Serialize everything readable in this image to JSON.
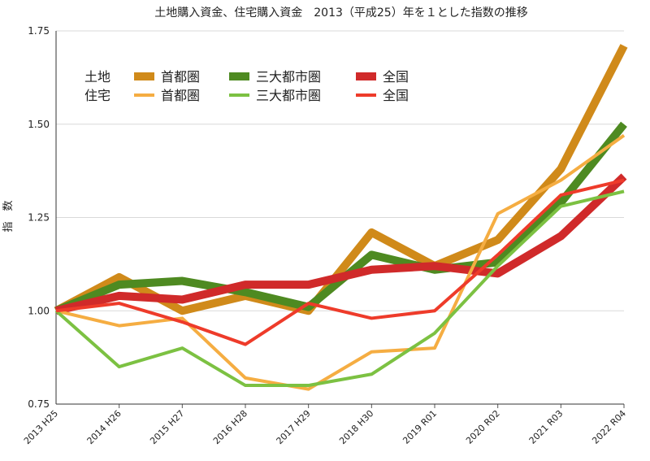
{
  "chart_data": {
    "type": "line",
    "title": "土地購入資金、住宅購入資金　2013（平成25）年を１とした指数の推移",
    "xlabel": "",
    "ylabel": "指　数",
    "categories": [
      "2013 H25",
      "2014 H26",
      "2015 H27",
      "2016 H28",
      "2017 H29",
      "2018 H30",
      "2019 R01",
      "2020 R02",
      "2021 R03",
      "2022 R04"
    ],
    "ylim": [
      0.75,
      1.75
    ],
    "yticks": [
      "0.75",
      "1.00",
      "1.25",
      "1.50",
      "1.75"
    ],
    "yticks_values": [
      0.75,
      1.0,
      1.25,
      1.5,
      1.75
    ],
    "grid": "horizontal",
    "legend_placement": "top-left",
    "legend_groups": [
      "土地",
      "住宅"
    ],
    "series": [
      {
        "name": "首都圏",
        "group": "土地",
        "color": "#d08a1a",
        "values": [
          1.0,
          1.09,
          1.0,
          1.04,
          1.0,
          1.21,
          1.12,
          1.19,
          1.38,
          1.71
        ]
      },
      {
        "name": "三大都市圏",
        "group": "土地",
        "color": "#4e8a21",
        "values": [
          1.0,
          1.07,
          1.08,
          1.05,
          1.01,
          1.15,
          1.11,
          1.13,
          1.29,
          1.5
        ]
      },
      {
        "name": "全国",
        "group": "土地",
        "color": "#d02a2a",
        "values": [
          1.0,
          1.04,
          1.03,
          1.07,
          1.07,
          1.11,
          1.12,
          1.1,
          1.2,
          1.36
        ]
      },
      {
        "name": "首都圏",
        "group": "住宅",
        "color": "#f5ad42",
        "values": [
          1.0,
          0.96,
          0.98,
          0.82,
          0.79,
          0.89,
          0.9,
          1.26,
          1.35,
          1.47
        ]
      },
      {
        "name": "三大都市圏",
        "group": "住宅",
        "color": "#7cc142",
        "values": [
          1.0,
          0.85,
          0.9,
          0.8,
          0.8,
          0.83,
          0.94,
          1.12,
          1.28,
          1.32
        ]
      },
      {
        "name": "全国",
        "group": "住宅",
        "color": "#ee3b2a",
        "values": [
          1.0,
          1.02,
          0.97,
          0.91,
          1.02,
          0.98,
          1.0,
          1.15,
          1.31,
          1.35
        ]
      }
    ]
  }
}
